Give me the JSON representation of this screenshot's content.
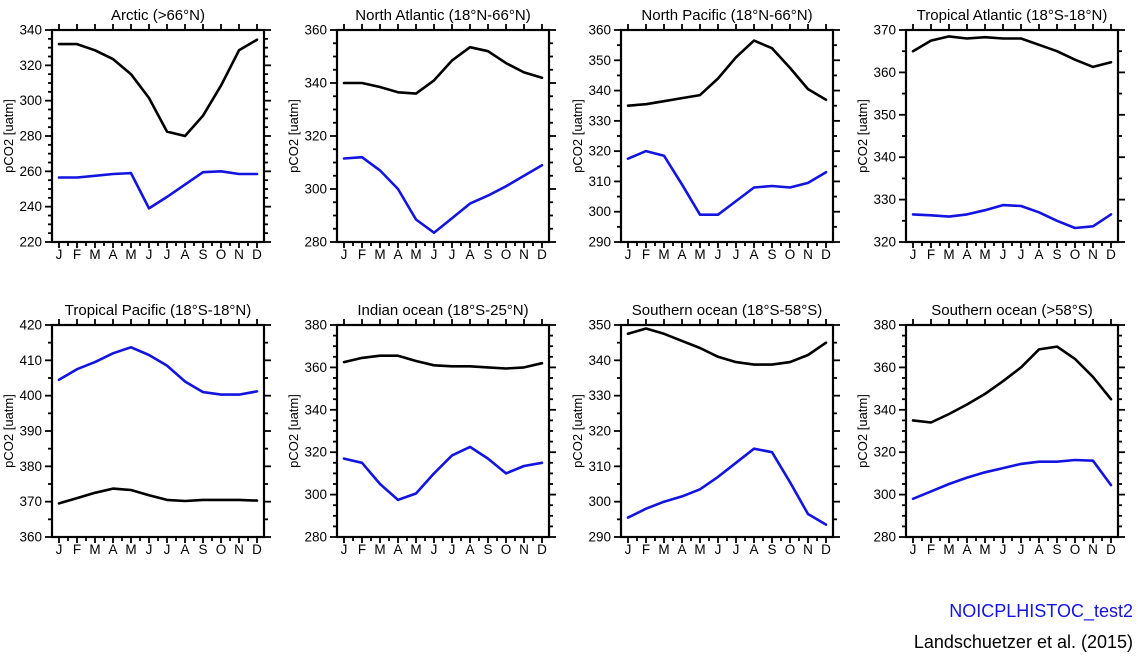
{
  "page": {
    "background": "#ffffff"
  },
  "legend": {
    "position": "bottom-right",
    "items": [
      {
        "label": "NOICPLHISTOC_test2",
        "color": "#1414e0"
      },
      {
        "label": "Landschuetzer et al. (2015)",
        "color": "#000000"
      }
    ]
  },
  "chart_data": {
    "type": "line",
    "ylabel": "pCO2 [uatm]",
    "categories": [
      "J",
      "F",
      "M",
      "A",
      "M",
      "J",
      "J",
      "A",
      "S",
      "O",
      "N",
      "D"
    ],
    "grid": false,
    "legend_position": "bottom-right",
    "colors": {
      "model": "#1414e0",
      "obs": "#000000"
    },
    "charts": [
      {
        "title": "Arctic (>66°N)",
        "ylim": [
          220,
          340
        ],
        "ytick_major": 20,
        "ytick_minor": 5,
        "series": [
          {
            "name": "Landschuetzer et al. (2015)",
            "key": "obs",
            "color": "#000000",
            "values": [
              332,
              332,
              328.5,
              323.5,
              315,
              301.5,
              282.5,
              280,
              291.5,
              308.5,
              328.5,
              334.5
            ]
          },
          {
            "name": "NOICPLHISTOC_test2",
            "key": "model",
            "color": "#1414e0",
            "values": [
              256.5,
              256.5,
              257.5,
              258.5,
              259,
              239,
              245.5,
              252.5,
              259.5,
              260,
              258.5,
              258.5
            ]
          }
        ]
      },
      {
        "title": "North Atlantic (18°N-66°N)",
        "ylim": [
          280,
          360
        ],
        "ytick_major": 20,
        "ytick_minor": 5,
        "series": [
          {
            "name": "Landschuetzer et al. (2015)",
            "key": "obs",
            "color": "#000000",
            "values": [
              340,
              340,
              338.5,
              336.5,
              336,
              341,
              348.5,
              353.5,
              352,
              347.5,
              344,
              342
            ]
          },
          {
            "name": "NOICPLHISTOC_test2",
            "key": "model",
            "color": "#1414e0",
            "values": [
              311.5,
              312,
              307,
              300,
              288.5,
              283.5,
              289,
              294.5,
              297.5,
              301,
              305,
              309
            ]
          }
        ]
      },
      {
        "title": "North Pacific (18°N-66°N)",
        "ylim": [
          290,
          360
        ],
        "ytick_major": 10,
        "ytick_minor": 5,
        "series": [
          {
            "name": "Landschuetzer et al. (2015)",
            "key": "obs",
            "color": "#000000",
            "values": [
              335,
              335.5,
              336.5,
              337.5,
              338.5,
              344,
              351,
              356.5,
              354,
              347.5,
              340.5,
              337
            ]
          },
          {
            "name": "NOICPLHISTOC_test2",
            "key": "model",
            "color": "#1414e0",
            "values": [
              317.5,
              320,
              318.5,
              309,
              299,
              299,
              303.5,
              308,
              308.5,
              308,
              309.5,
              313
            ]
          }
        ]
      },
      {
        "title": "Tropical Atlantic (18°S-18°N)",
        "ylim": [
          320,
          370
        ],
        "ytick_major": 10,
        "ytick_minor": 5,
        "series": [
          {
            "name": "Landschuetzer et al. (2015)",
            "key": "obs",
            "color": "#000000",
            "values": [
              365,
              367.5,
              368.5,
              368,
              368.3,
              368,
              368,
              366.5,
              365,
              363,
              361.3,
              362.4
            ]
          },
          {
            "name": "NOICPLHISTOC_test2",
            "key": "model",
            "color": "#1414e0",
            "values": [
              326.5,
              326.3,
              326,
              326.5,
              327.5,
              328.7,
              328.5,
              327,
              325,
              323.3,
              323.7,
              326.5
            ]
          }
        ]
      },
      {
        "title": "Tropical Pacific (18°S-18°N)",
        "ylim": [
          360,
          420
        ],
        "ytick_major": 10,
        "ytick_minor": 5,
        "series": [
          {
            "name": "Landschuetzer et al. (2015)",
            "key": "obs",
            "color": "#000000",
            "values": [
              369.5,
              371,
              372.5,
              373.7,
              373.3,
              371.8,
              370.5,
              370.2,
              370.5,
              370.5,
              370.5,
              370.3
            ]
          },
          {
            "name": "NOICPLHISTOC_test2",
            "key": "model",
            "color": "#1414e0",
            "values": [
              404.5,
              407.5,
              409.5,
              412,
              413.7,
              411.5,
              408.5,
              404,
              401,
              400.3,
              400.3,
              401.2
            ]
          }
        ]
      },
      {
        "title": "Indian ocean (18°S-25°N)",
        "ylim": [
          280,
          380
        ],
        "ytick_major": 20,
        "ytick_minor": 5,
        "series": [
          {
            "name": "Landschuetzer et al. (2015)",
            "key": "obs",
            "color": "#000000",
            "values": [
              362.5,
              364.5,
              365.5,
              365.5,
              363,
              361,
              360.5,
              360.5,
              360,
              359.5,
              360,
              362
            ]
          },
          {
            "name": "NOICPLHISTOC_test2",
            "key": "model",
            "color": "#1414e0",
            "values": [
              317,
              315,
              305,
              297.5,
              300.5,
              310,
              318.5,
              322.5,
              317,
              310,
              313.5,
              315
            ]
          }
        ]
      },
      {
        "title": "Southern ocean (18°S-58°S)",
        "ylim": [
          290,
          350
        ],
        "ytick_major": 10,
        "ytick_minor": 5,
        "series": [
          {
            "name": "Landschuetzer et al. (2015)",
            "key": "obs",
            "color": "#000000",
            "values": [
              347.5,
              349,
              347.5,
              345.5,
              343.5,
              341,
              339.5,
              338.8,
              338.8,
              339.5,
              341.5,
              345
            ]
          },
          {
            "name": "NOICPLHISTOC_test2",
            "key": "model",
            "color": "#1414e0",
            "values": [
              295.5,
              298,
              300,
              301.5,
              303.5,
              307,
              311,
              315,
              314,
              305.5,
              296.5,
              293.5
            ]
          }
        ]
      },
      {
        "title": "Southern ocean (>58°S)",
        "ylim": [
          280,
          380
        ],
        "ytick_major": 20,
        "ytick_minor": 5,
        "series": [
          {
            "name": "Landschuetzer et al. (2015)",
            "key": "obs",
            "color": "#000000",
            "values": [
              335,
              334,
              338,
              342.5,
              347.5,
              353.5,
              360,
              368.5,
              369.8,
              364,
              355.5,
              345
            ]
          },
          {
            "name": "NOICPLHISTOC_test2",
            "key": "model",
            "color": "#1414e0",
            "values": [
              298,
              301.5,
              305,
              308,
              310.5,
              312.5,
              314.5,
              315.5,
              315.5,
              316.3,
              316,
              304.5
            ]
          }
        ]
      }
    ]
  }
}
